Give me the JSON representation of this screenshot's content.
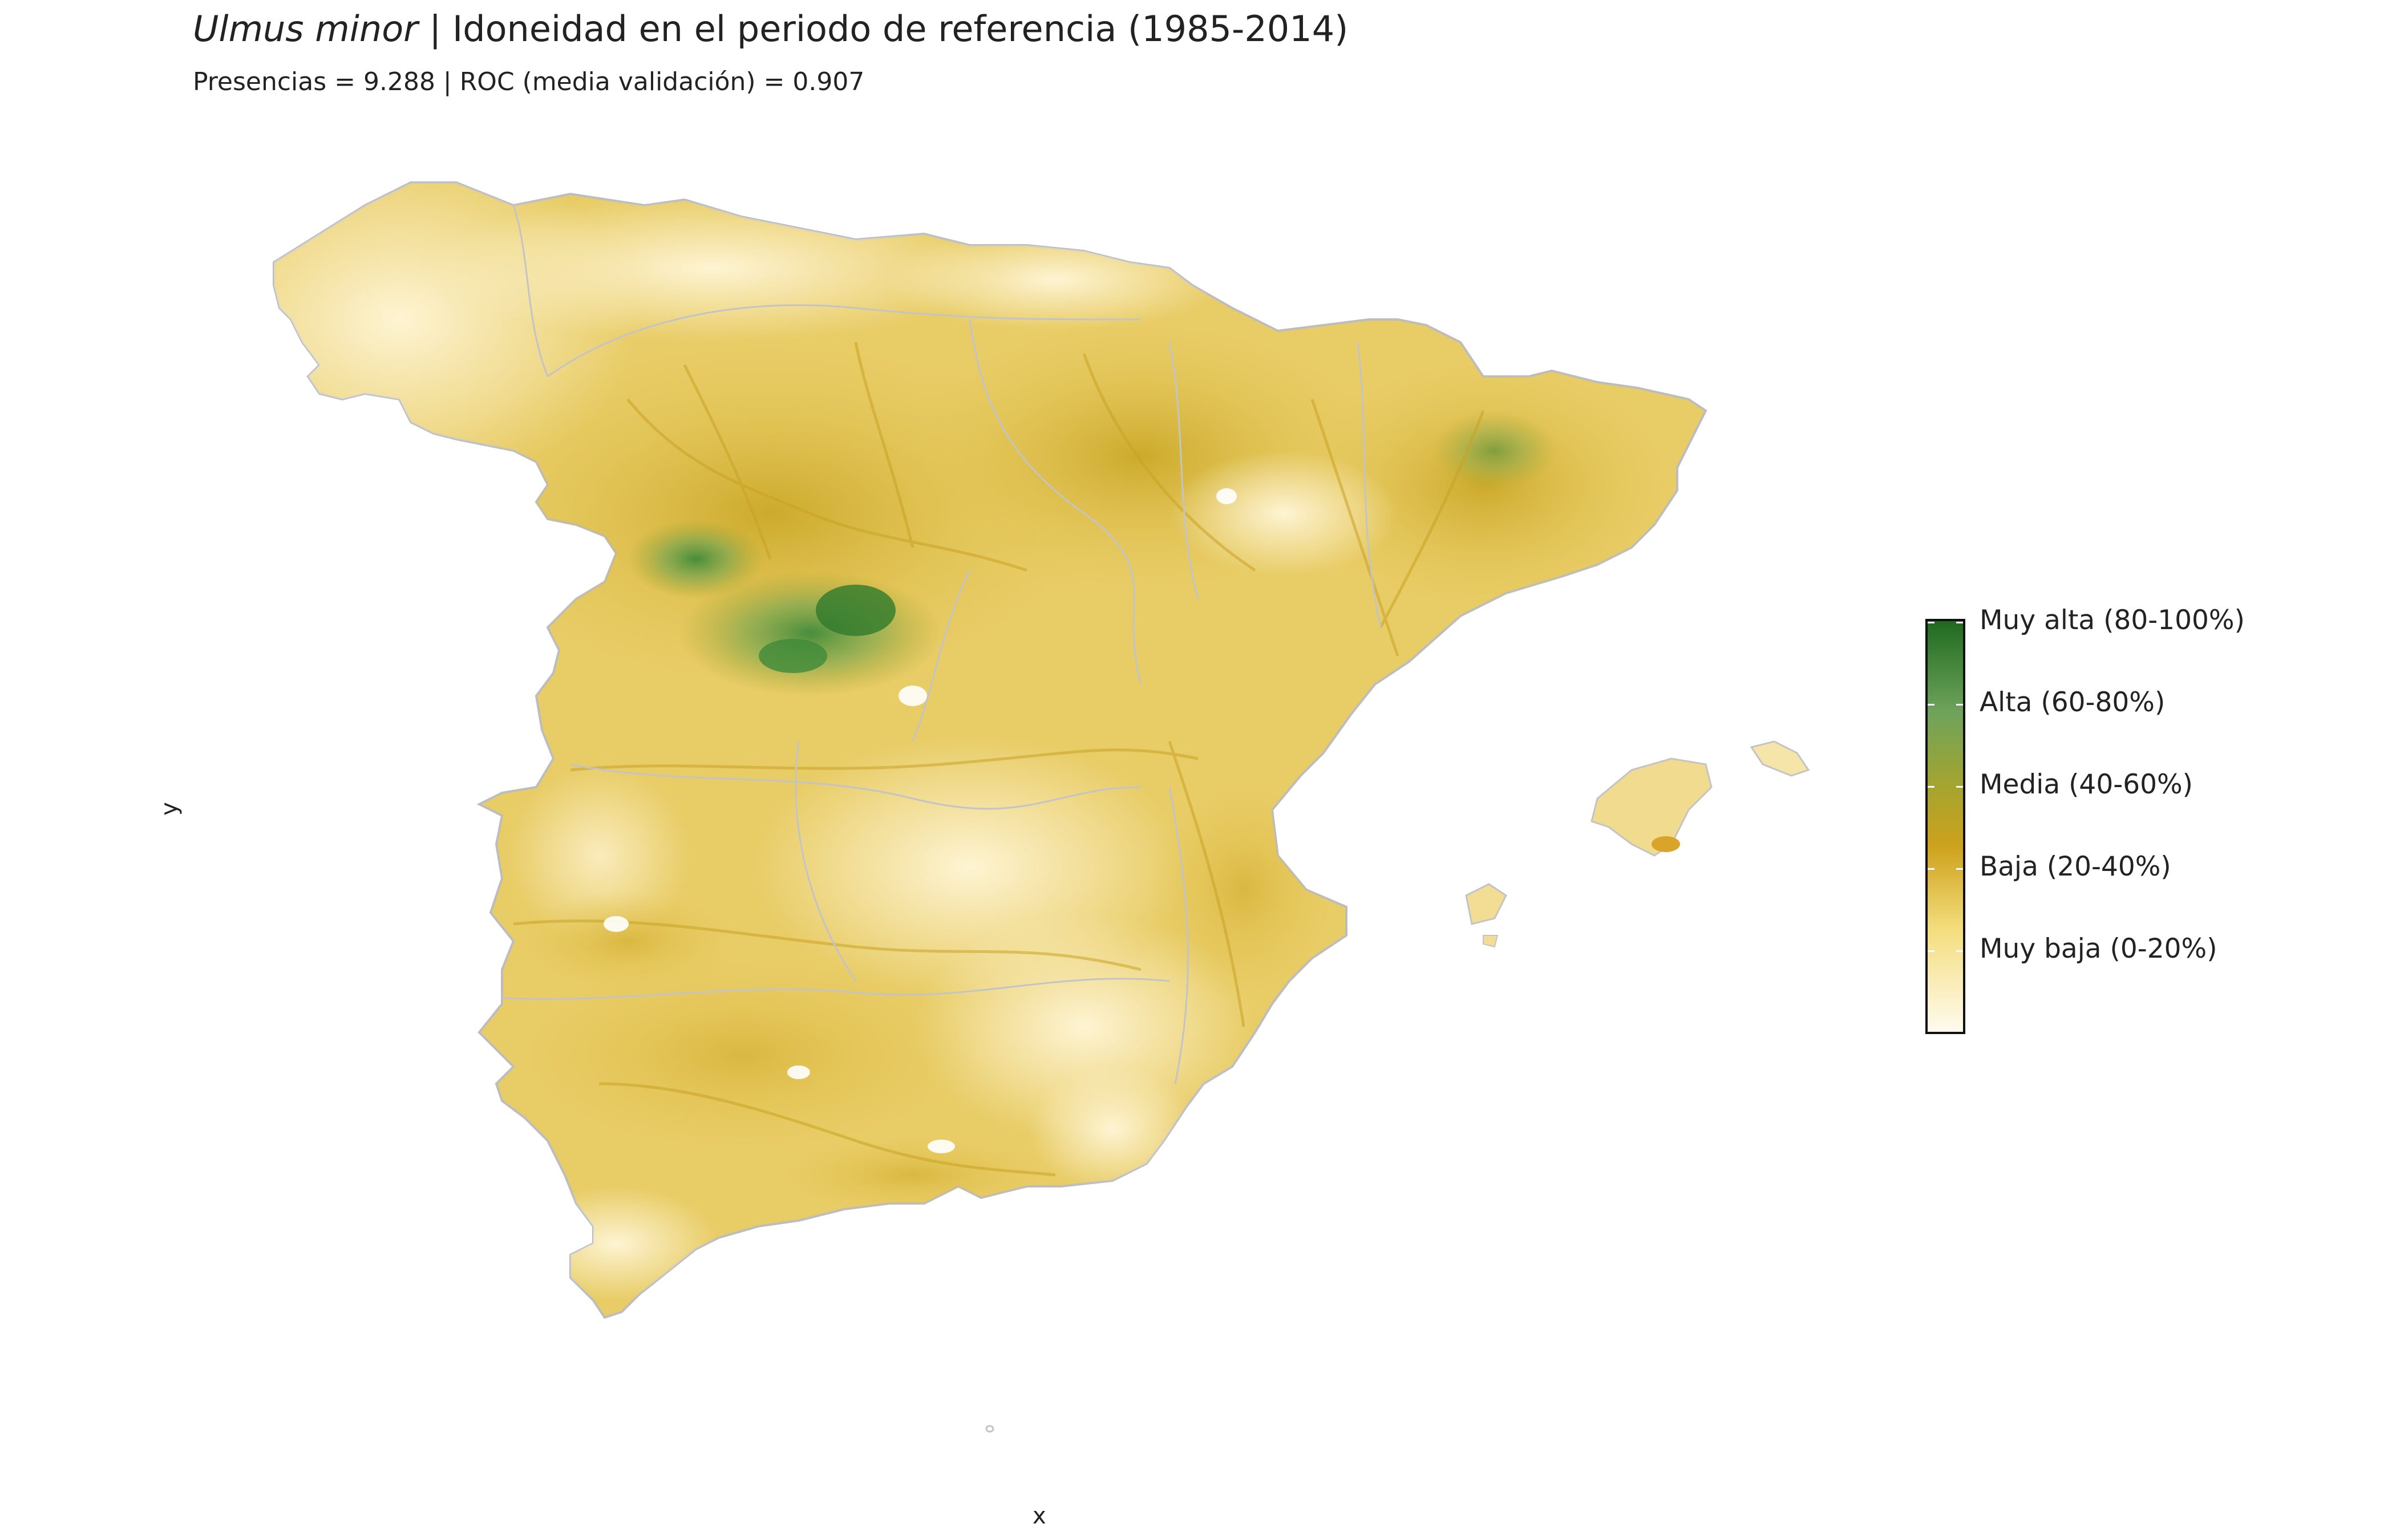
{
  "title": {
    "species": "Ulmus minor",
    "rest": " | Idoneidad en el periodo de referencia (1985-2014)"
  },
  "subtitle": "Presencias = 9.288  |  ROC (media validación) = 0.907",
  "axes": {
    "x_label": "x",
    "y_label": "y"
  },
  "legend": {
    "title": "",
    "colors": {
      "low": "#fffbee",
      "yellow": "#f4dd7e",
      "ochre": "#cea21c",
      "olive": "#a4a42f",
      "green": "#6ea35b",
      "dark": "#1f6a1f"
    },
    "classes": [
      {
        "label": "Muy alta (80-100%)"
      },
      {
        "label": "Alta (60-80%)"
      },
      {
        "label": "Media (40-60%)"
      },
      {
        "label": "Baja (20-40%)"
      },
      {
        "label": "Muy baja (0-20%)"
      }
    ]
  }
}
